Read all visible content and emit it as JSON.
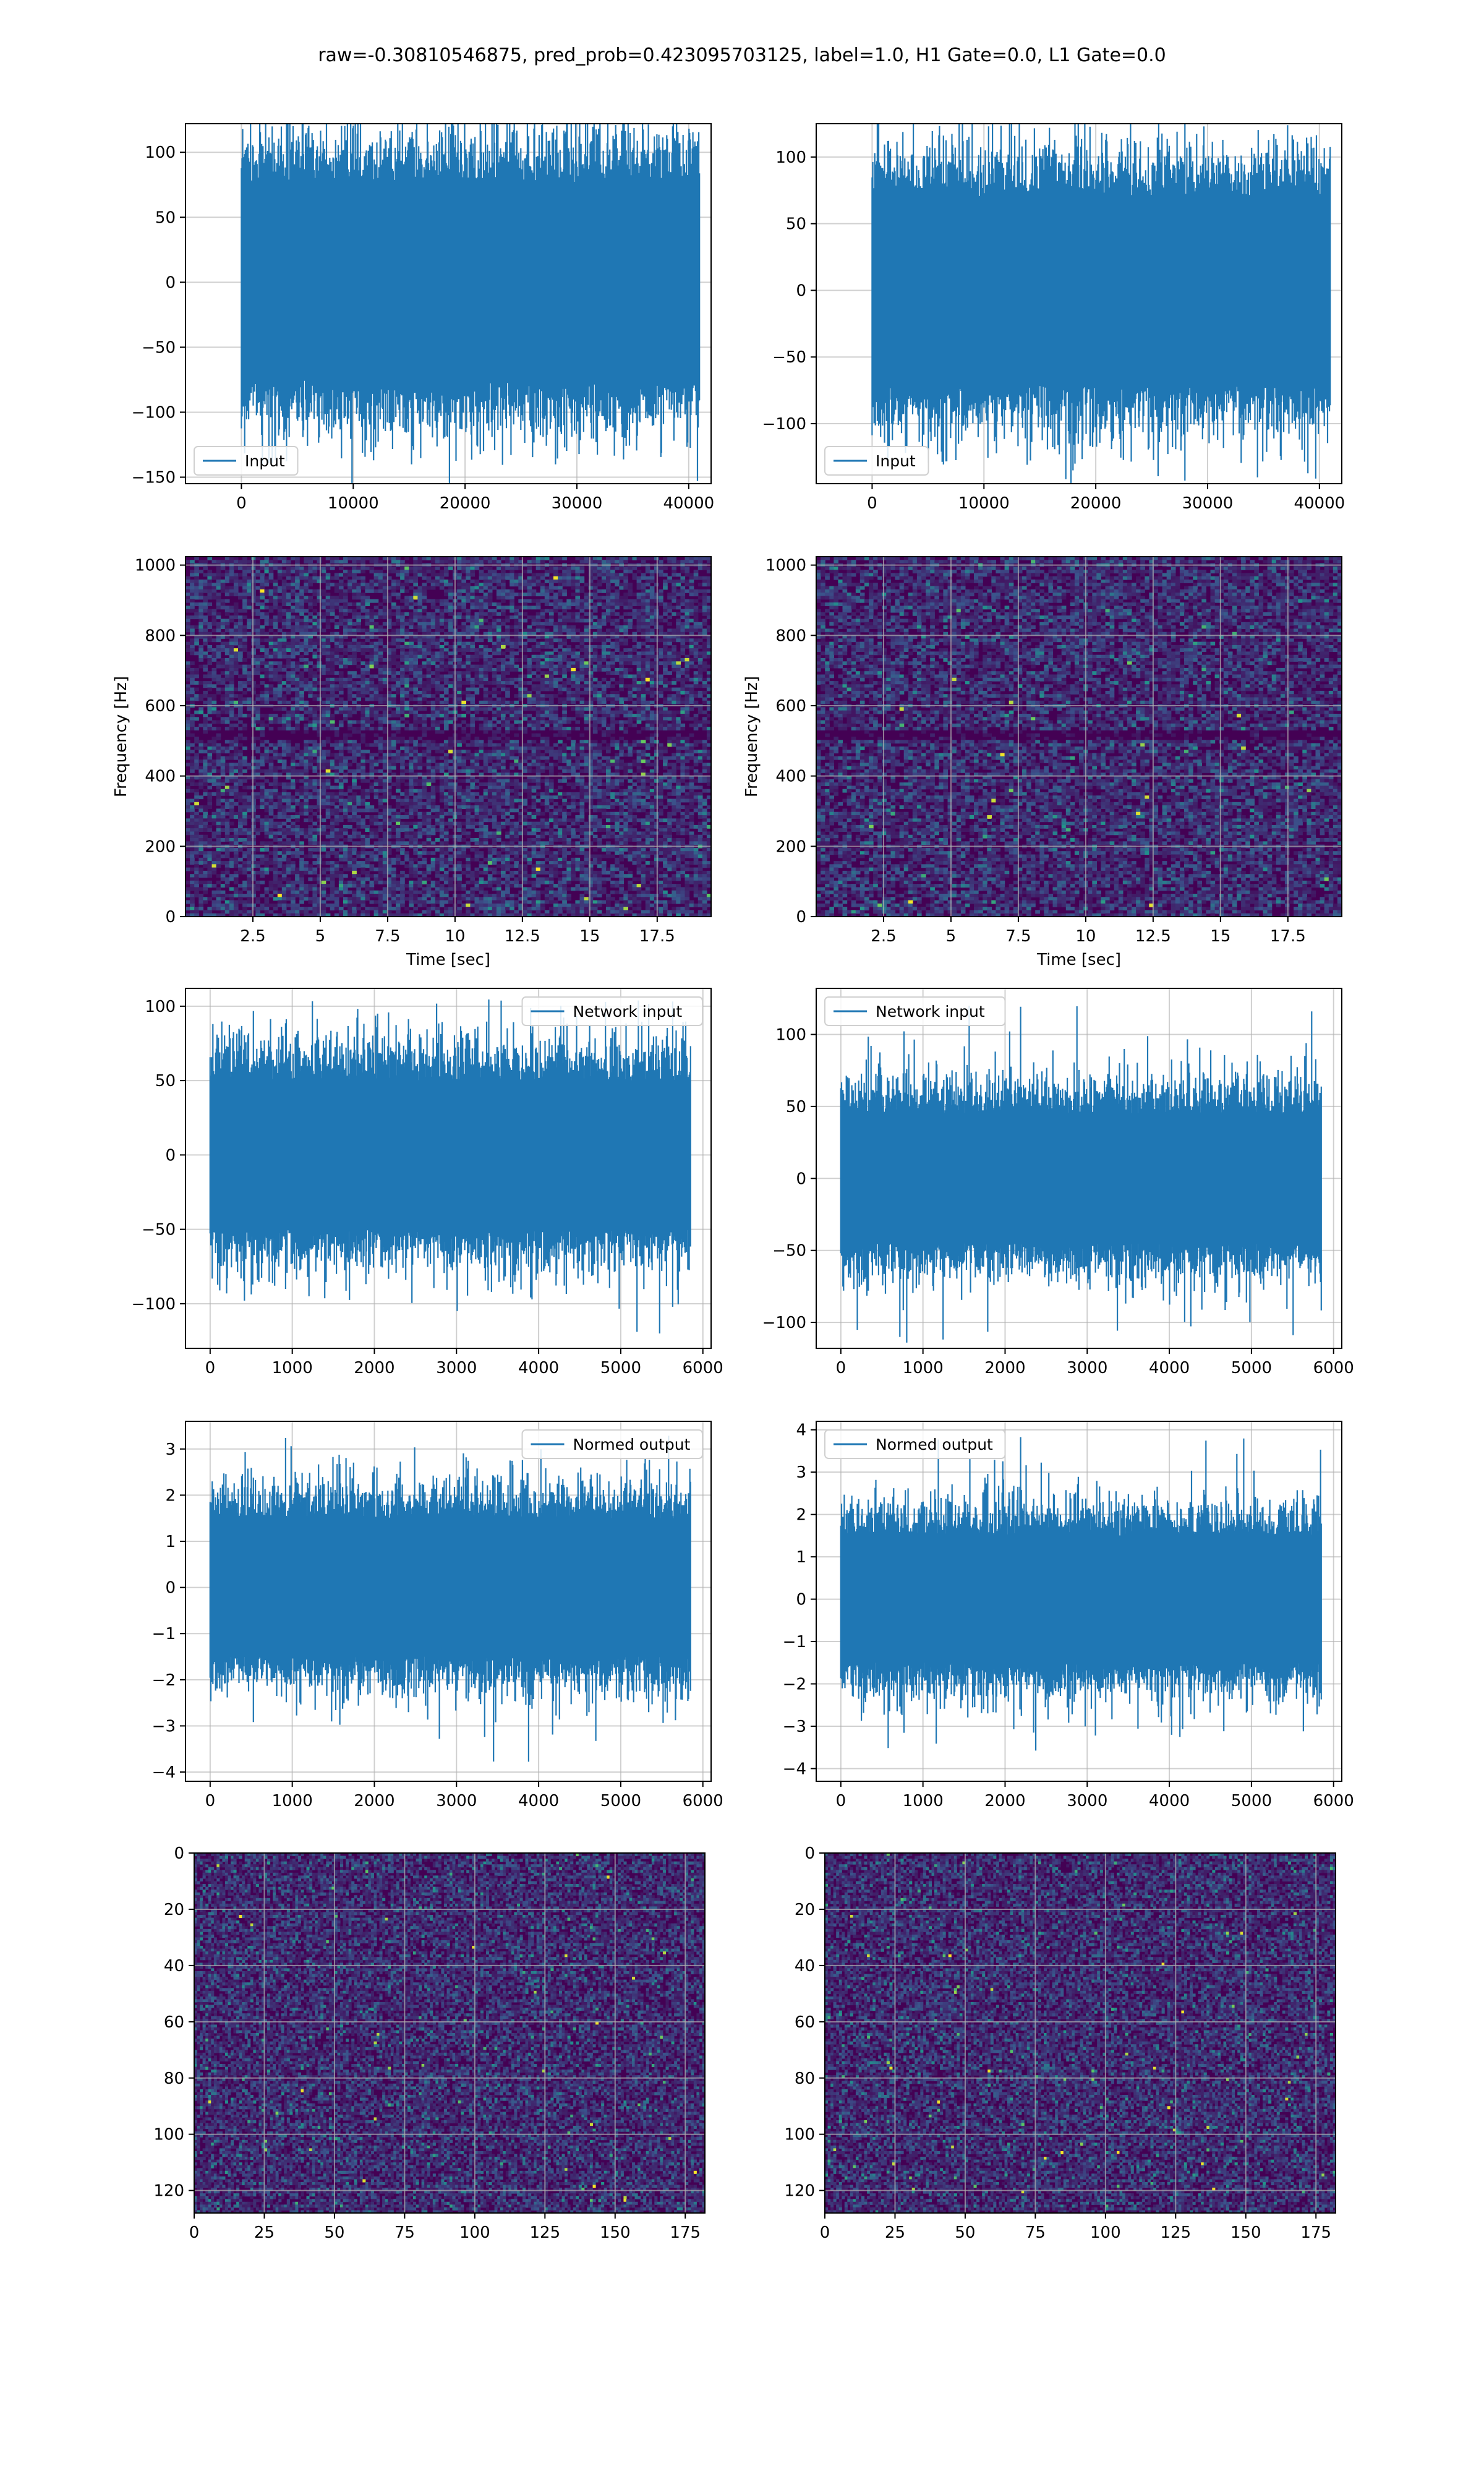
{
  "suptitle": "raw=-0.30810546875, pred_prob=0.423095703125, label=1.0, H1 Gate=0.0, L1 Gate=0.0",
  "colors": {
    "line": "#1f77b4",
    "grid": "#b0b0b0",
    "viridis_low": "#440154",
    "viridis_mid": "#21918c",
    "viridis_high": "#fde725"
  },
  "chart_data": [
    {
      "id": "h1-input",
      "type": "line",
      "legend": "Input",
      "legend_loc": "lower left",
      "xlim": [
        -5000,
        42000
      ],
      "ylim": [
        -155,
        122
      ],
      "xticks": [
        0,
        10000,
        20000,
        30000,
        40000
      ],
      "yticks": [
        -150,
        -100,
        -50,
        0,
        50,
        100
      ],
      "x_end": 40960,
      "envelope": [
        -75,
        75
      ],
      "spike_min": -140,
      "spike_max": 115,
      "grid": true
    },
    {
      "id": "l1-input",
      "type": "line",
      "legend": "Input",
      "legend_loc": "lower left",
      "xlim": [
        -5000,
        42000
      ],
      "ylim": [
        -145,
        125
      ],
      "xticks": [
        0,
        10000,
        20000,
        30000,
        40000
      ],
      "yticks": [
        -100,
        -50,
        0,
        50,
        100
      ],
      "x_end": 40960,
      "envelope": [
        -70,
        70
      ],
      "spike_min": -130,
      "spike_max": 120,
      "grid": true
    },
    {
      "id": "h1-spectrogram",
      "type": "heatmap",
      "colormap": "viridis",
      "xlim": [
        0,
        19.5
      ],
      "ylim": [
        0,
        1024
      ],
      "xticks": [
        2.5,
        5.0,
        7.5,
        10.0,
        12.5,
        15.0,
        17.5
      ],
      "yticks": [
        0,
        200,
        400,
        600,
        800,
        1000
      ],
      "xlabel": "Time [sec]",
      "ylabel": "Frequency [Hz]",
      "grid": true
    },
    {
      "id": "l1-spectrogram",
      "type": "heatmap",
      "colormap": "viridis",
      "xlim": [
        0,
        19.5
      ],
      "ylim": [
        0,
        1024
      ],
      "xticks": [
        2.5,
        5.0,
        7.5,
        10.0,
        12.5,
        15.0,
        17.5
      ],
      "yticks": [
        0,
        200,
        400,
        600,
        800,
        1000
      ],
      "xlabel": "Time [sec]",
      "ylabel": "Frequency [Hz]",
      "grid": true
    },
    {
      "id": "h1-network-input",
      "type": "line",
      "legend": "Network input",
      "legend_loc": "upper right",
      "xlim": [
        -300,
        6100
      ],
      "ylim": [
        -130,
        112
      ],
      "xticks": [
        0,
        1000,
        2000,
        3000,
        4000,
        5000,
        6000
      ],
      "yticks": [
        -100,
        -50,
        0,
        50,
        100
      ],
      "x_end": 5850,
      "envelope": [
        -50,
        50
      ],
      "spike_min": -120,
      "spike_max": 105,
      "grid": true
    },
    {
      "id": "l1-network-input",
      "type": "line",
      "legend": "Network input",
      "legend_loc": "upper left",
      "xlim": [
        -300,
        6100
      ],
      "ylim": [
        -118,
        132
      ],
      "xticks": [
        0,
        1000,
        2000,
        3000,
        4000,
        5000,
        6000
      ],
      "yticks": [
        -100,
        -50,
        0,
        50,
        100
      ],
      "x_end": 5850,
      "envelope": [
        -45,
        45
      ],
      "spike_min": -115,
      "spike_max": 120,
      "grid": true
    },
    {
      "id": "h1-normed-output",
      "type": "line",
      "legend": "Normed output",
      "legend_loc": "upper right",
      "xlim": [
        -300,
        6100
      ],
      "ylim": [
        -4.2,
        3.6
      ],
      "xticks": [
        0,
        1000,
        2000,
        3000,
        4000,
        5000,
        6000
      ],
      "yticks": [
        -4,
        -3,
        -2,
        -1,
        0,
        1,
        2,
        3
      ],
      "x_end": 5850,
      "envelope": [
        -1.5,
        1.5
      ],
      "spike_min": -3.8,
      "spike_max": 3.3,
      "grid": true
    },
    {
      "id": "l1-normed-output",
      "type": "line",
      "legend": "Normed output",
      "legend_loc": "upper left",
      "xlim": [
        -300,
        6100
      ],
      "ylim": [
        -4.3,
        4.2
      ],
      "xticks": [
        0,
        1000,
        2000,
        3000,
        4000,
        5000,
        6000
      ],
      "yticks": [
        -4,
        -3,
        -2,
        -1,
        0,
        1,
        2,
        3,
        4
      ],
      "x_end": 5850,
      "envelope": [
        -1.5,
        1.5
      ],
      "spike_min": -3.8,
      "spike_max": 3.9,
      "grid": true
    },
    {
      "id": "h1-network-image",
      "type": "heatmap",
      "colormap": "viridis",
      "y_inverted": true,
      "xlim": [
        0,
        182
      ],
      "ylim": [
        128,
        0
      ],
      "xticks": [
        0,
        25,
        50,
        75,
        100,
        125,
        150,
        175
      ],
      "yticks": [
        0,
        20,
        40,
        60,
        80,
        100,
        120
      ],
      "grid": true
    },
    {
      "id": "l1-network-image",
      "type": "heatmap",
      "colormap": "viridis",
      "y_inverted": true,
      "xlim": [
        0,
        182
      ],
      "ylim": [
        128,
        0
      ],
      "xticks": [
        0,
        25,
        50,
        75,
        100,
        125,
        150,
        175
      ],
      "yticks": [
        0,
        20,
        40,
        60,
        80,
        100,
        120
      ],
      "grid": true
    }
  ]
}
